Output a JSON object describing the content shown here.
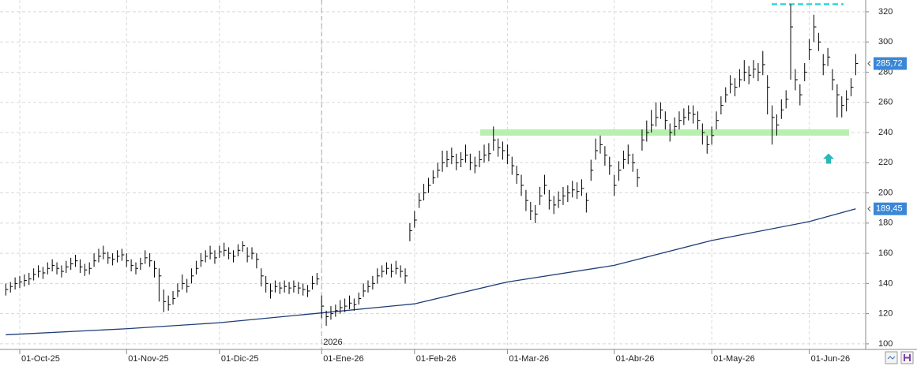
{
  "chart_data": {
    "type": "ohlc",
    "color": "#000000",
    "grid": true,
    "categories": [
      null,
      null,
      null,
      "01-Oct-25",
      null,
      null,
      null,
      null,
      null,
      null,
      null,
      null,
      null,
      null,
      null,
      null,
      null,
      null,
      null,
      null,
      null,
      null,
      null,
      null,
      null,
      null,
      "01-Nov-25",
      null,
      null,
      null,
      null,
      null,
      null,
      null,
      null,
      null,
      null,
      null,
      null,
      null,
      null,
      null,
      null,
      null,
      null,
      null,
      "01-Dic-25",
      null,
      null,
      null,
      null,
      null,
      null,
      null,
      null,
      null,
      null,
      null,
      null,
      null,
      null,
      null,
      null,
      null,
      null,
      null,
      null,
      null,
      "01-Ene-26",
      null,
      null,
      null,
      null,
      null,
      null,
      null,
      null,
      null,
      null,
      null,
      null,
      null,
      null,
      null,
      null,
      null,
      null,
      null,
      "01-Feb-26",
      null,
      null,
      null,
      null,
      null,
      null,
      null,
      null,
      null,
      null,
      null,
      null,
      null,
      null,
      null,
      null,
      null,
      null,
      null,
      "01-Mar-26",
      null,
      null,
      null,
      null,
      null,
      null,
      null,
      null,
      null,
      null,
      null,
      null,
      null,
      null,
      null,
      null,
      null,
      null,
      null,
      null,
      null,
      null,
      "01-Abr-26",
      null,
      null,
      null,
      null,
      null,
      null,
      null,
      null,
      null,
      null,
      null,
      null,
      null,
      null,
      null,
      null,
      null,
      null,
      null,
      null,
      "01-May-26",
      null,
      null,
      null,
      null,
      null,
      null,
      null,
      null,
      null,
      null,
      null,
      null,
      null,
      null,
      null,
      null,
      null,
      null,
      null,
      null,
      "01-Jun-26",
      null,
      null,
      null,
      null,
      null,
      null,
      null,
      null,
      null,
      null
    ],
    "high": [
      140,
      141,
      144,
      145,
      146,
      147,
      150,
      152,
      151,
      154,
      156,
      154,
      152,
      155,
      157,
      159,
      156,
      153,
      154,
      160,
      163,
      165,
      161,
      160,
      162,
      163,
      160,
      156,
      154,
      157,
      162,
      160,
      155,
      150,
      136,
      132,
      135,
      140,
      146,
      143,
      150,
      155,
      160,
      162,
      165,
      162,
      165,
      167,
      164,
      162,
      166,
      168,
      164,
      164,
      160,
      150,
      145,
      140,
      142,
      141,
      142,
      141,
      142,
      141,
      140,
      139,
      145,
      147,
      132,
      122,
      125,
      126,
      129,
      130,
      132,
      130,
      134,
      140,
      142,
      145,
      150,
      152,
      154,
      153,
      155,
      152,
      150,
      180,
      188,
      200,
      206,
      210,
      215,
      220,
      228,
      228,
      230,
      226,
      227,
      232,
      226,
      224,
      228,
      232,
      233,
      244,
      236,
      234,
      232,
      224,
      218,
      212,
      202,
      194,
      192,
      204,
      212,
      202,
      198,
      201,
      204,
      205,
      208,
      207,
      209,
      200,
      222,
      236,
      238,
      231,
      224,
      212,
      221,
      228,
      232,
      226,
      216,
      242,
      248,
      255,
      260,
      260,
      254,
      246,
      250,
      254,
      256,
      258,
      258,
      254,
      246,
      238,
      244,
      254,
      264,
      270,
      278,
      276,
      282,
      288,
      284,
      288,
      286,
      294,
      278,
      258,
      252,
      262,
      268,
      325,
      282,
      272,
      286,
      302,
      318,
      306,
      292,
      296,
      282,
      272,
      264,
      268,
      276,
      292
    ],
    "low": [
      132,
      134,
      136,
      137,
      138,
      139,
      142,
      144,
      143,
      146,
      148,
      146,
      144,
      147,
      149,
      151,
      147,
      145,
      146,
      151,
      154,
      156,
      153,
      152,
      154,
      155,
      151,
      148,
      146,
      149,
      153,
      151,
      144,
      128,
      121,
      122,
      126,
      131,
      136,
      134,
      140,
      146,
      151,
      154,
      156,
      153,
      157,
      158,
      156,
      154,
      158,
      161,
      154,
      156,
      150,
      138,
      134,
      130,
      134,
      133,
      134,
      133,
      134,
      133,
      132,
      131,
      136,
      139,
      117,
      112,
      116,
      118,
      120,
      121,
      123,
      122,
      126,
      131,
      134,
      136,
      140,
      144,
      146,
      144,
      146,
      144,
      140,
      168,
      177,
      190,
      195,
      200,
      206,
      210,
      214,
      217,
      219,
      215,
      217,
      220,
      215,
      213,
      217,
      220,
      221,
      228,
      224,
      222,
      219,
      212,
      206,
      198,
      188,
      182,
      180,
      192,
      199,
      189,
      186,
      190,
      192,
      194,
      197,
      196,
      198,
      187,
      208,
      222,
      226,
      218,
      212,
      198,
      208,
      216,
      219,
      214,
      204,
      228,
      234,
      240,
      244,
      249,
      242,
      234,
      238,
      242,
      245,
      248,
      246,
      242,
      232,
      226,
      232,
      242,
      252,
      260,
      266,
      264,
      270,
      274,
      272,
      276,
      274,
      278,
      252,
      232,
      238,
      249,
      256,
      275,
      268,
      258,
      274,
      288,
      300,
      294,
      278,
      284,
      268,
      250,
      250,
      254,
      264,
      278
    ],
    "close": [
      136,
      138,
      140,
      141,
      142,
      143,
      146,
      148,
      147,
      150,
      152,
      150,
      148,
      151,
      153,
      155,
      151,
      149,
      150,
      155,
      158,
      160,
      157,
      156,
      158,
      159,
      155,
      152,
      150,
      153,
      157,
      155,
      150,
      145,
      128,
      126,
      130,
      135,
      140,
      138,
      145,
      150,
      155,
      158,
      160,
      157,
      161,
      162,
      160,
      158,
      162,
      165,
      158,
      160,
      156,
      145,
      140,
      135,
      138,
      137,
      138,
      137,
      138,
      137,
      136,
      135,
      140,
      143,
      125,
      118,
      120,
      122,
      124,
      125,
      127,
      126,
      130,
      135,
      138,
      140,
      145,
      148,
      150,
      148,
      150,
      148,
      145,
      175,
      182,
      195,
      200,
      205,
      210,
      215,
      220,
      222,
      224,
      220,
      222,
      225,
      220,
      218,
      222,
      225,
      226,
      235,
      230,
      228,
      225,
      218,
      212,
      205,
      195,
      188,
      186,
      198,
      205,
      195,
      192,
      195,
      198,
      200,
      202,
      201,
      203,
      195,
      215,
      228,
      232,
      225,
      218,
      205,
      215,
      222,
      225,
      220,
      210,
      235,
      240,
      245,
      250,
      255,
      248,
      240,
      244,
      248,
      250,
      253,
      252,
      248,
      240,
      232,
      238,
      248,
      258,
      265,
      272,
      270,
      275,
      280,
      278,
      282,
      280,
      285,
      270,
      250,
      245,
      255,
      262,
      310,
      275,
      265,
      280,
      295,
      310,
      300,
      285,
      290,
      275,
      265,
      258,
      262,
      270,
      285.72
    ],
    "moving_average": {
      "color": "#1f3c78",
      "x": [
        0,
        26,
        46,
        68,
        88,
        108,
        131,
        152,
        173,
        183
      ],
      "values": [
        106,
        110,
        114,
        120.5,
        126.5,
        141,
        152,
        168.5,
        181,
        189.45
      ]
    },
    "levels": [
      {
        "value": 240,
        "color": "#b8f0b0",
        "style": "band"
      },
      {
        "value": 325,
        "color": "#33d6e0",
        "style": "dashed"
      }
    ],
    "arrow": {
      "value": 222,
      "color": "#2ab7b7"
    },
    "year_label": "2026",
    "last_price": {
      "value": 285.72,
      "label": "285,72"
    },
    "ma_last": {
      "value": 189.45,
      "label": "189,45"
    },
    "ylim": [
      96.3,
      327.8
    ],
    "yticks": [
      100,
      120,
      140,
      160,
      180,
      200,
      220,
      240,
      260,
      280,
      300,
      320
    ]
  }
}
